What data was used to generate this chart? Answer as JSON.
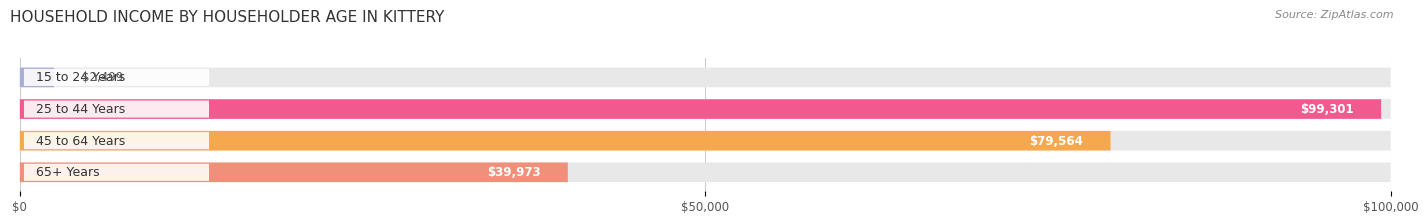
{
  "title": "HOUSEHOLD INCOME BY HOUSEHOLDER AGE IN KITTERY",
  "source": "Source: ZipAtlas.com",
  "categories": [
    "15 to 24 Years",
    "25 to 44 Years",
    "45 to 64 Years",
    "65+ Years"
  ],
  "values": [
    2499,
    99301,
    79564,
    39973
  ],
  "bar_colors": [
    "#a8aed6",
    "#f05a8e",
    "#f5a84e",
    "#f0907a"
  ],
  "value_labels": [
    "$2,499",
    "$99,301",
    "$79,564",
    "$39,973"
  ],
  "xlim": [
    0,
    100000
  ],
  "xticks": [
    0,
    50000,
    100000
  ],
  "xticklabels": [
    "$0",
    "$50,000",
    "$100,000"
  ],
  "title_fontsize": 11,
  "source_fontsize": 8,
  "label_fontsize": 8.5,
  "cat_fontsize": 9,
  "tick_fontsize": 8.5,
  "bar_height": 0.62,
  "bg_color": "#ffffff",
  "bar_bg_color": "#e8e8e8"
}
